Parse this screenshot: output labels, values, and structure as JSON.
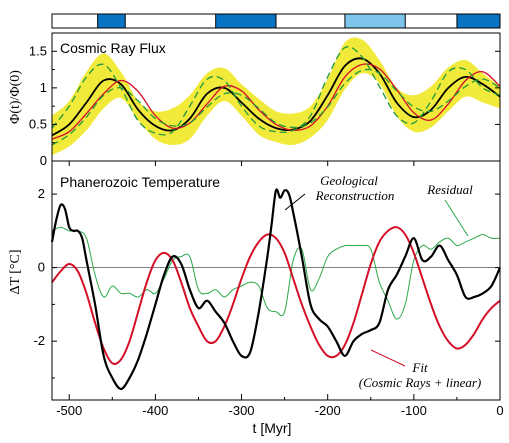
{
  "chart_data": [
    {
      "type": "line",
      "title": "Cosmic Ray Flux",
      "ylabel": "Φ(t)/Φ(0)",
      "xlim": [
        -520,
        0
      ],
      "ylim": [
        0,
        1.75
      ],
      "yticks": [
        0,
        0.5,
        1,
        1.5
      ],
      "yticklabels": [
        "0",
        "0.5",
        "1",
        "1.5"
      ],
      "grid": false,
      "ice_age_bars": [
        {
          "start": -467,
          "end": -435,
          "color": "#0a74c4"
        },
        {
          "start": -330,
          "end": -260,
          "color": "#0a74c4"
        },
        {
          "start": -180,
          "end": -110,
          "color": "#7ec5ec"
        },
        {
          "start": -50,
          "end": 0,
          "color": "#0a74c4"
        }
      ],
      "band": {
        "name": "uncertainty band",
        "color": "#f2ea3a",
        "x": [
          -520,
          -500,
          -480,
          -460,
          -440,
          -420,
          -400,
          -380,
          -360,
          -340,
          -320,
          -300,
          -280,
          -260,
          -240,
          -220,
          -200,
          -180,
          -160,
          -140,
          -120,
          -100,
          -80,
          -60,
          -40,
          -20,
          0
        ],
        "upper": [
          0.62,
          0.82,
          1.22,
          1.47,
          1.22,
          0.82,
          0.68,
          0.72,
          0.9,
          1.2,
          1.27,
          1.05,
          0.85,
          0.68,
          0.65,
          0.75,
          1.12,
          1.62,
          1.66,
          1.38,
          1.0,
          0.9,
          1.02,
          1.28,
          1.38,
          1.2,
          1.02
        ],
        "lower": [
          0.08,
          0.2,
          0.42,
          0.72,
          0.86,
          0.56,
          0.3,
          0.22,
          0.3,
          0.62,
          0.82,
          0.62,
          0.36,
          0.26,
          0.22,
          0.32,
          0.56,
          0.98,
          1.2,
          1.06,
          0.62,
          0.4,
          0.46,
          0.68,
          0.88,
          0.8,
          0.72
        ]
      },
      "series": [
        {
          "name": "",
          "color": "#000000",
          "x": [
            -520,
            -500,
            -480,
            -460,
            -440,
            -420,
            -400,
            -380,
            -360,
            -340,
            -320,
            -300,
            -280,
            -260,
            -240,
            -220,
            -200,
            -180,
            -160,
            -140,
            -120,
            -100,
            -80,
            -60,
            -40,
            -20,
            0
          ],
          "y": [
            0.35,
            0.5,
            0.8,
            1.1,
            1.05,
            0.7,
            0.48,
            0.42,
            0.58,
            0.92,
            1.0,
            0.8,
            0.58,
            0.45,
            0.43,
            0.55,
            0.9,
            1.3,
            1.4,
            1.2,
            0.8,
            0.6,
            0.7,
            1.0,
            1.15,
            1.05,
            0.88
          ]
        },
        {
          "name": "",
          "color": "#d40f27",
          "x": [
            -520,
            -500,
            -480,
            -460,
            -440,
            -420,
            -400,
            -380,
            -360,
            -340,
            -320,
            -300,
            -280,
            -260,
            -240,
            -220,
            -200,
            -180,
            -160,
            -140,
            -120,
            -100,
            -80,
            -60,
            -40,
            -20,
            0
          ],
          "y": [
            0.3,
            0.4,
            0.65,
            0.92,
            1.1,
            0.95,
            0.62,
            0.45,
            0.52,
            0.78,
            1.02,
            0.96,
            0.7,
            0.5,
            0.42,
            0.48,
            0.75,
            1.15,
            1.32,
            1.26,
            0.98,
            0.66,
            0.56,
            0.78,
            1.1,
            1.22,
            1.02
          ]
        },
        {
          "name": "",
          "color": "#1f9a3a",
          "dashed": true,
          "x": [
            -520,
            -500,
            -480,
            -460,
            -440,
            -420,
            -400,
            -380,
            -360,
            -340,
            -320,
            -300,
            -280,
            -260,
            -240,
            -220,
            -200,
            -180,
            -160,
            -140,
            -120,
            -100,
            -80,
            -60,
            -40,
            -20,
            0
          ],
          "y": [
            0.45,
            0.75,
            1.15,
            1.32,
            1.0,
            0.55,
            0.38,
            0.4,
            0.75,
            1.12,
            1.1,
            0.75,
            0.48,
            0.4,
            0.42,
            0.62,
            1.15,
            1.55,
            1.42,
            1.02,
            0.62,
            0.52,
            0.82,
            1.22,
            1.25,
            1.0,
            0.9
          ]
        },
        {
          "name": "",
          "color": "#1f9a3a",
          "dashed": true,
          "x": [
            -520,
            -500,
            -480,
            -460,
            -440,
            -420,
            -400,
            -380,
            -360,
            -340,
            -320,
            -300,
            -280,
            -260,
            -240,
            -220,
            -200,
            -180,
            -160,
            -140,
            -120,
            -100,
            -80,
            -60,
            -40,
            -20,
            0
          ],
          "y": [
            0.22,
            0.36,
            0.6,
            0.9,
            1.0,
            0.82,
            0.58,
            0.48,
            0.52,
            0.74,
            0.92,
            0.9,
            0.72,
            0.52,
            0.46,
            0.52,
            0.74,
            1.06,
            1.24,
            1.2,
            0.96,
            0.74,
            0.68,
            0.82,
            1.02,
            1.12,
            1.0
          ]
        }
      ]
    },
    {
      "type": "line",
      "title": "Phanerozoic Temperature",
      "ylabel": "ΔT [°C]",
      "xlabel": "t [Myr]",
      "xlim": [
        -520,
        0
      ],
      "ylim": [
        -3.6,
        2.9
      ],
      "yticks": [
        -2,
        0,
        2
      ],
      "yticklabels": [
        "-2",
        "0",
        "2"
      ],
      "xticks": [
        -500,
        -400,
        -300,
        -200,
        -100,
        0
      ],
      "xticklabels": [
        "-500",
        "-400",
        "-300",
        "-200",
        "-100",
        "0"
      ],
      "zero_line": true,
      "grid": false,
      "annotations": [
        {
          "text": "Geological",
          "target": "geological"
        },
        {
          "text": "Reconstruction",
          "target": "geological"
        },
        {
          "text": "Residual",
          "target": "residual"
        },
        {
          "text": "Fit",
          "target": "fit"
        },
        {
          "text": "(Cosmic Rays + linear)",
          "target": "fit"
        }
      ],
      "series": [
        {
          "name": "Geological Reconstruction",
          "color": "#000000",
          "x": [
            -520,
            -515,
            -510,
            -505,
            -500,
            -495,
            -490,
            -485,
            -480,
            -470,
            -460,
            -450,
            -440,
            -430,
            -420,
            -410,
            -400,
            -390,
            -380,
            -370,
            -360,
            -350,
            -340,
            -330,
            -320,
            -310,
            -300,
            -290,
            -280,
            -270,
            -265,
            -260,
            -255,
            -250,
            -245,
            -240,
            -230,
            -220,
            -210,
            -200,
            -190,
            -180,
            -170,
            -160,
            -150,
            -140,
            -130,
            -120,
            -110,
            -100,
            -90,
            -80,
            -70,
            -60,
            -50,
            -40,
            -30,
            -20,
            -10,
            0
          ],
          "y": [
            0.7,
            1.3,
            1.7,
            1.6,
            1.1,
            1.0,
            1.0,
            0.8,
            0.2,
            -1.0,
            -2.4,
            -3.0,
            -3.3,
            -3.0,
            -2.5,
            -1.8,
            -1.0,
            -0.2,
            0.3,
            0.1,
            -0.6,
            -1.1,
            -0.9,
            -1.2,
            -1.5,
            -2.0,
            -2.4,
            -2.3,
            -1.2,
            0.3,
            1.2,
            2.1,
            1.9,
            2.1,
            2.0,
            1.5,
            0.3,
            -1.0,
            -1.4,
            -1.6,
            -2.0,
            -2.4,
            -2.0,
            -1.8,
            -1.7,
            -1.5,
            -0.6,
            -0.2,
            0.3,
            0.8,
            0.2,
            0.3,
            0.6,
            0.2,
            -0.2,
            -0.8,
            -0.8,
            -0.7,
            -0.5,
            0.0
          ]
        },
        {
          "name": "Fit (Cosmic Rays + linear)",
          "color": "#d40f27",
          "x": [
            -520,
            -510,
            -500,
            -490,
            -480,
            -470,
            -460,
            -450,
            -440,
            -430,
            -420,
            -410,
            -400,
            -390,
            -380,
            -370,
            -360,
            -350,
            -340,
            -330,
            -320,
            -310,
            -300,
            -290,
            -280,
            -270,
            -260,
            -250,
            -240,
            -230,
            -220,
            -210,
            -200,
            -190,
            -180,
            -170,
            -160,
            -150,
            -140,
            -130,
            -120,
            -110,
            -100,
            -90,
            -80,
            -70,
            -60,
            -50,
            -40,
            -30,
            -20,
            -10,
            0
          ],
          "y": [
            -0.4,
            -0.1,
            0.1,
            -0.1,
            -0.7,
            -1.5,
            -2.2,
            -2.6,
            -2.5,
            -2.0,
            -1.2,
            -0.4,
            0.2,
            0.4,
            0.2,
            -0.4,
            -1.1,
            -1.6,
            -2.0,
            -2.0,
            -1.6,
            -1.0,
            -0.3,
            0.3,
            0.7,
            0.9,
            0.8,
            0.4,
            -0.3,
            -1.0,
            -1.6,
            -2.1,
            -2.4,
            -2.4,
            -2.1,
            -1.5,
            -0.7,
            0.1,
            0.7,
            1.0,
            1.1,
            0.9,
            0.4,
            -0.3,
            -1.0,
            -1.6,
            -2.0,
            -2.2,
            -2.1,
            -1.8,
            -1.4,
            -1.1,
            -0.9
          ]
        },
        {
          "name": "Residual",
          "color": "#2aa84a",
          "x": [
            -520,
            -510,
            -500,
            -490,
            -480,
            -470,
            -460,
            -450,
            -440,
            -430,
            -420,
            -410,
            -400,
            -390,
            -380,
            -370,
            -360,
            -350,
            -340,
            -330,
            -320,
            -310,
            -300,
            -290,
            -280,
            -270,
            -260,
            -250,
            -240,
            -230,
            -220,
            -210,
            -200,
            -190,
            -180,
            -170,
            -160,
            -150,
            -140,
            -130,
            -120,
            -110,
            -100,
            -90,
            -80,
            -70,
            -60,
            -50,
            -40,
            -30,
            -20,
            -10,
            0
          ],
          "y": [
            1.0,
            1.1,
            1.0,
            1.0,
            0.8,
            -0.2,
            -0.8,
            -0.5,
            -0.7,
            -0.7,
            -0.8,
            -0.6,
            -0.7,
            -0.3,
            0.2,
            0.3,
            0.3,
            -0.6,
            -0.7,
            -0.6,
            -0.8,
            -0.6,
            -0.5,
            -0.4,
            -0.5,
            -1.1,
            -1.2,
            -1.2,
            0.2,
            0.5,
            -0.6,
            -0.3,
            0.3,
            0.5,
            0.6,
            0.6,
            0.6,
            0.5,
            -0.4,
            -0.9,
            -1.4,
            -1.0,
            0.2,
            0.6,
            0.5,
            0.7,
            0.8,
            0.6,
            0.7,
            0.8,
            0.9,
            0.8,
            0.8
          ]
        }
      ]
    }
  ]
}
